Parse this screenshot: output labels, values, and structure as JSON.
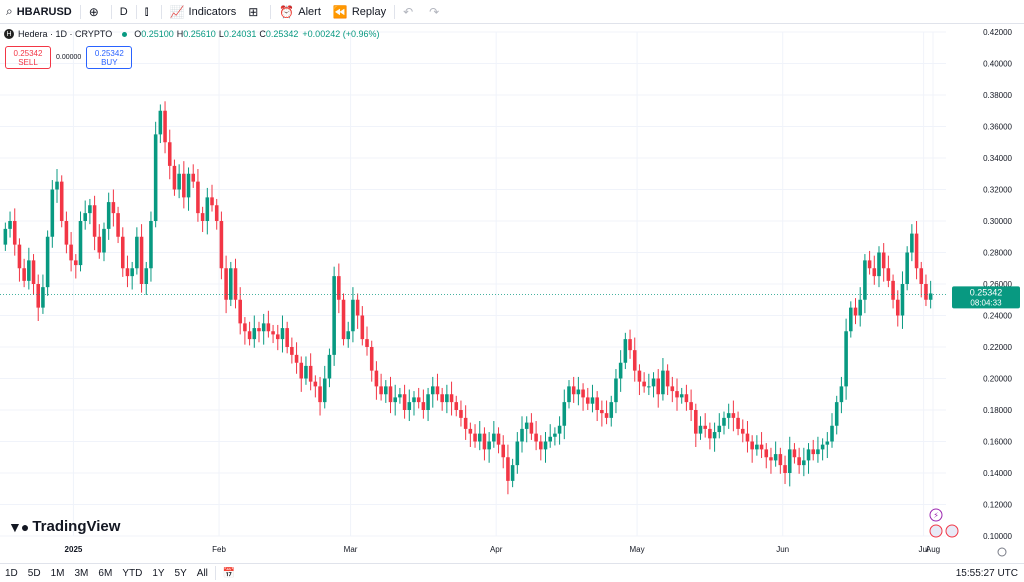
{
  "toolbar": {
    "symbol": "HBARUSD",
    "interval": "D",
    "indicators_label": "Indicators",
    "alert_label": "Alert",
    "replay_label": "Replay",
    "icons": [
      "search-icon",
      "add-symbol-icon",
      "candles-icon",
      "indicators-icon",
      "layouts-icon",
      "alert-icon",
      "replay-icon",
      "undo-icon",
      "redo-icon"
    ]
  },
  "legend": {
    "title": "Hedera · 1D · CRYPTO",
    "open_label": "O",
    "open": "0.25100",
    "high_label": "H",
    "high": "0.25610",
    "low_label": "L",
    "low": "0.24031",
    "close_label": "C",
    "close": "0.25342",
    "change": "+0.00242 (+0.96%)"
  },
  "orders": {
    "sell_price": "0.25342",
    "sell_label": "SELL",
    "spread": "0.00000",
    "buy_price": "0.25342",
    "buy_label": "BUY"
  },
  "price_tag": {
    "price": "0.25342",
    "countdown": "08:04:33"
  },
  "brand": "TradingView",
  "timeframes": [
    "1D",
    "5D",
    "1M",
    "3M",
    "6M",
    "YTD",
    "1Y",
    "5Y",
    "All"
  ],
  "clock": "15:55:27 UTC",
  "colors": {
    "up": "#089981",
    "down": "#f23645",
    "grid": "#f0f3fa",
    "text": "#131722"
  },
  "chart_data": {
    "type": "candlestick",
    "ylim": [
      0.1,
      0.42
    ],
    "y_ticks": [
      "0.10000",
      "0.12000",
      "0.14000",
      "0.16000",
      "0.18000",
      "0.20000",
      "0.22000",
      "0.24000",
      "0.26000",
      "0.28000",
      "0.30000",
      "0.32000",
      "0.34000",
      "0.36000",
      "0.38000",
      "0.40000",
      "0.42000"
    ],
    "x_ticks": [
      "2025",
      "Feb",
      "Mar",
      "Apr",
      "May",
      "Jun",
      "Jul",
      "Aug"
    ],
    "current_price": 0.25342,
    "close_series": [
      0.295,
      0.3,
      0.285,
      0.27,
      0.262,
      0.275,
      0.26,
      0.245,
      0.258,
      0.29,
      0.32,
      0.325,
      0.3,
      0.285,
      0.275,
      0.272,
      0.3,
      0.305,
      0.31,
      0.29,
      0.28,
      0.295,
      0.312,
      0.305,
      0.29,
      0.27,
      0.265,
      0.27,
      0.29,
      0.26,
      0.27,
      0.3,
      0.355,
      0.37,
      0.35,
      0.335,
      0.32,
      0.33,
      0.315,
      0.33,
      0.325,
      0.305,
      0.3,
      0.315,
      0.31,
      0.3,
      0.27,
      0.25,
      0.27,
      0.25,
      0.235,
      0.23,
      0.225,
      0.232,
      0.23,
      0.235,
      0.23,
      0.228,
      0.225,
      0.232,
      0.22,
      0.215,
      0.21,
      0.2,
      0.208,
      0.198,
      0.195,
      0.185,
      0.2,
      0.215,
      0.265,
      0.25,
      0.225,
      0.23,
      0.25,
      0.24,
      0.225,
      0.22,
      0.205,
      0.195,
      0.19,
      0.195,
      0.185,
      0.188,
      0.19,
      0.18,
      0.185,
      0.188,
      0.185,
      0.18,
      0.19,
      0.195,
      0.19,
      0.185,
      0.19,
      0.185,
      0.18,
      0.175,
      0.168,
      0.165,
      0.16,
      0.165,
      0.155,
      0.16,
      0.165,
      0.158,
      0.15,
      0.135,
      0.145,
      0.16,
      0.168,
      0.172,
      0.165,
      0.16,
      0.155,
      0.16,
      0.163,
      0.165,
      0.17,
      0.185,
      0.195,
      0.19,
      0.193,
      0.188,
      0.184,
      0.188,
      0.18,
      0.178,
      0.175,
      0.185,
      0.2,
      0.21,
      0.225,
      0.218,
      0.205,
      0.198,
      0.195,
      0.195,
      0.2,
      0.19,
      0.205,
      0.195,
      0.192,
      0.188,
      0.19,
      0.185,
      0.18,
      0.165,
      0.17,
      0.168,
      0.162,
      0.166,
      0.17,
      0.175,
      0.178,
      0.175,
      0.168,
      0.165,
      0.16,
      0.155,
      0.158,
      0.155,
      0.15,
      0.148,
      0.152,
      0.145,
      0.14,
      0.155,
      0.15,
      0.145,
      0.148,
      0.155,
      0.152,
      0.155,
      0.158,
      0.16,
      0.17,
      0.185,
      0.195,
      0.23,
      0.245,
      0.24,
      0.25,
      0.275,
      0.27,
      0.265,
      0.28,
      0.27,
      0.262,
      0.25,
      0.24,
      0.26,
      0.28,
      0.292,
      0.27,
      0.26,
      0.25,
      0.254
    ]
  }
}
